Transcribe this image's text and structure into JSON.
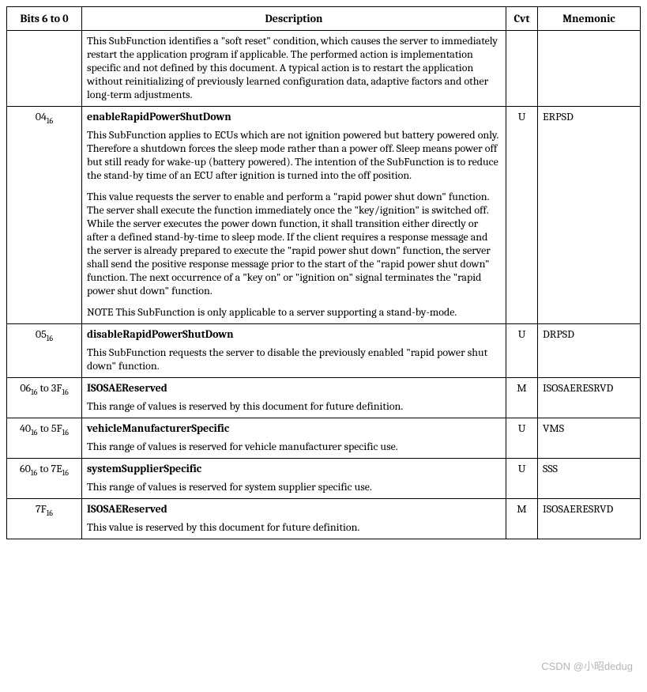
{
  "header": {
    "bits": "Bits 6 to 0",
    "desc": "Description",
    "cvt": "Cvt",
    "mnem": "Mnemonic"
  },
  "rows": [
    {
      "bits_html": "",
      "title": "",
      "paras": [
        "This SubFunction identifies a \"soft reset\" condition, which causes the server to immediately restart the application program if applicable. The performed action is implementation specific and not defined by this document. A typical action is to restart the application without reinitializing of previously learned configuration data, adaptive factors and other long-term adjustments."
      ],
      "cvt": "",
      "mnem": ""
    },
    {
      "bits_html": "04<span class=\"sub\">16</span>",
      "title": "enableRapidPowerShutDown",
      "paras": [
        "This SubFunction applies to ECUs which are not ignition powered but battery powered only. Therefore a shutdown forces the sleep mode rather than a power off. Sleep means power off but still ready for wake-up (battery powered). The intention of the SubFunction is to reduce the stand-by time of an ECU after ignition is turned into the off position.",
        "This value requests the server to enable and perform a \"rapid power shut down\" function. The server shall execute the function immediately once the \"key/ignition\" is switched off. While the server executes the power down function, it shall transition either directly or after a defined stand-by-time to sleep mode. If the client requires a response message and the server is already prepared to execute the \"rapid power shut down\" function, the server shall send the positive response message prior to the start of the \"rapid power shut down\" function. The next occurrence of a \"key on\" or \"ignition on\" signal terminates the \"rapid power shut down\" function.",
        "NOTE   This SubFunction is only applicable to a server supporting a stand-by-mode."
      ],
      "cvt": "U",
      "mnem": "ERPSD"
    },
    {
      "bits_html": "05<span class=\"sub\">16</span>",
      "title": "disableRapidPowerShutDown",
      "paras": [
        "This SubFunction requests the server to disable the previously enabled \"rapid power shut down\" function."
      ],
      "cvt": "U",
      "mnem": "DRPSD"
    },
    {
      "bits_html": "06<span class=\"sub\">16</span> to 3F<span class=\"sub\">16</span>",
      "title": "ISOSAEReserved",
      "paras": [
        "This range of values is reserved by this document for future definition."
      ],
      "cvt": "M",
      "mnem": "ISOSAERESRVD"
    },
    {
      "bits_html": "40<span class=\"sub\">16</span> to 5F<span class=\"sub\">16</span>",
      "title": "vehicleManufacturerSpecific",
      "paras": [
        "This range of values is reserved for vehicle manufacturer specific use."
      ],
      "cvt": "U",
      "mnem": "VMS"
    },
    {
      "bits_html": "60<span class=\"sub\">16</span> to 7E<span class=\"sub\">16</span>",
      "title": "systemSupplierSpecific",
      "paras": [
        "This range of values is reserved for system supplier specific use."
      ],
      "cvt": "U",
      "mnem": "SSS"
    },
    {
      "bits_html": "7F<span class=\"sub\">16</span>",
      "title": "ISOSAEReserved",
      "paras": [
        "This value is reserved by this document for future definition."
      ],
      "cvt": "M",
      "mnem": "ISOSAERESRVD"
    }
  ],
  "watermark": "CSDN @小昭dedug"
}
